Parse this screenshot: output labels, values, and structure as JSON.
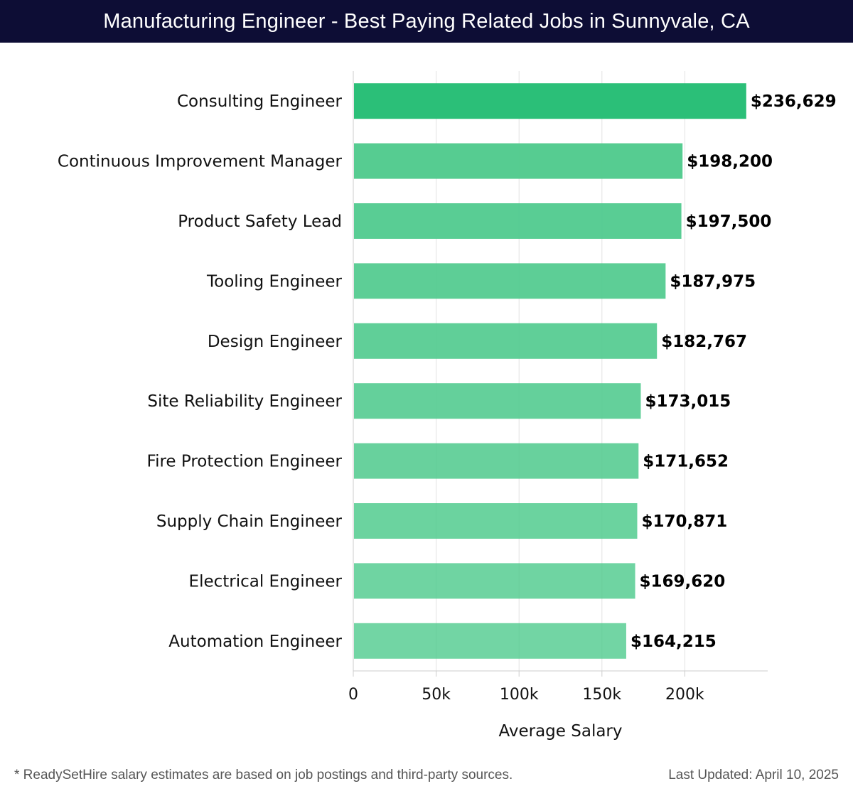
{
  "header": {
    "title": "Manufacturing Engineer - Best Paying Related Jobs in Sunnyvale, CA"
  },
  "chart_data": {
    "type": "bar",
    "orientation": "horizontal",
    "title": "Manufacturing Engineer - Best Paying Related Jobs in Sunnyvale, CA",
    "xlabel": "Average Salary",
    "ylabel": "",
    "xlim": [
      0,
      250000
    ],
    "xticks": [
      0,
      50000,
      100000,
      150000,
      200000
    ],
    "xtick_labels": [
      "0",
      "50k",
      "100k",
      "150k",
      "200k"
    ],
    "grid": true,
    "categories": [
      "Consulting Engineer",
      "Continuous Improvement Manager",
      "Product Safety Lead",
      "Tooling Engineer",
      "Design Engineer",
      "Site Reliability Engineer",
      "Fire Protection Engineer",
      "Supply Chain Engineer",
      "Electrical Engineer",
      "Automation Engineer"
    ],
    "values": [
      236629,
      198200,
      197500,
      187975,
      182767,
      173015,
      171652,
      170871,
      169620,
      164215
    ],
    "value_labels": [
      "$236,629",
      "$198,200",
      "$197,500",
      "$187,975",
      "$182,767",
      "$173,015",
      "$171,652",
      "$170,871",
      "$169,620",
      "$164,215"
    ],
    "colors": {
      "top_bar": "#2bbf78",
      "bars": "#4fca8d",
      "grid": "#e2e2e2",
      "axis": "#cccccc",
      "header_bg": "#0d0d35"
    }
  },
  "footer": {
    "note": "* ReadySetHire salary estimates are based on job postings and third-party sources.",
    "updated": "Last Updated: April 10, 2025"
  }
}
